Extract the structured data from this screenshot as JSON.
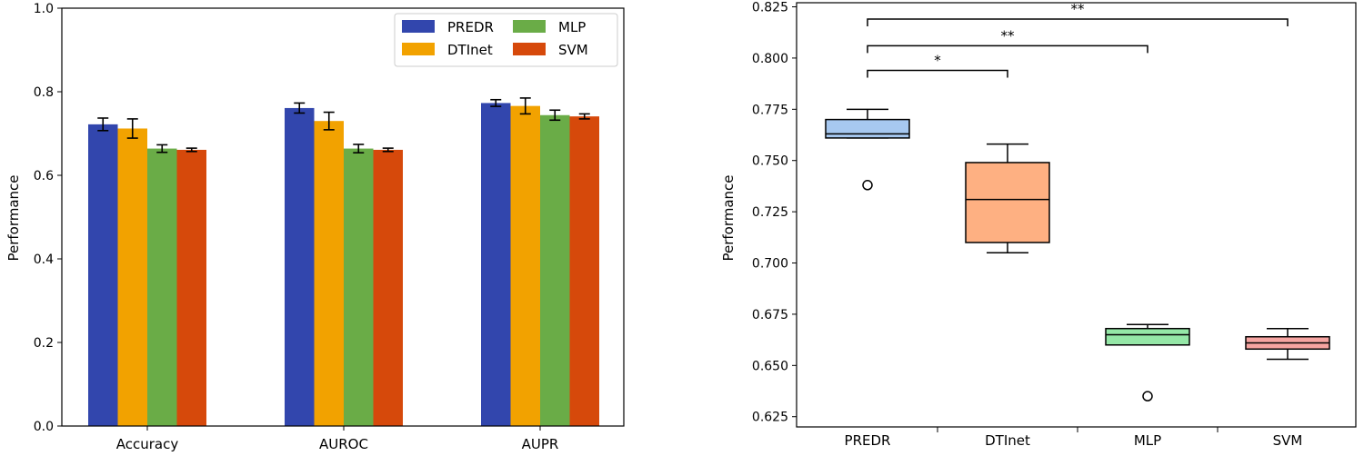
{
  "chart_data": [
    {
      "type": "bar",
      "xlabel": "",
      "ylabel": "Performance",
      "ylim": [
        0,
        1.0
      ],
      "yticks": [
        "0.0",
        "0.2",
        "0.4",
        "0.6",
        "0.8",
        "1.0"
      ],
      "categories": [
        "Accuracy",
        "AUROC",
        "AUPR"
      ],
      "legend_position": "top-right",
      "series": [
        {
          "name": "PREDR",
          "color": "#3246ad",
          "values": [
            0.722,
            0.761,
            0.773
          ],
          "errors": [
            0.015,
            0.012,
            0.008
          ]
        },
        {
          "name": "DTInet",
          "color": "#f2a200",
          "values": [
            0.712,
            0.73,
            0.766
          ],
          "errors": [
            0.023,
            0.021,
            0.019
          ]
        },
        {
          "name": "MLP",
          "color": "#6aac47",
          "values": [
            0.664,
            0.664,
            0.744
          ],
          "errors": [
            0.009,
            0.01,
            0.012
          ]
        },
        {
          "name": "SVM",
          "color": "#d6490b",
          "values": [
            0.661,
            0.661,
            0.741
          ],
          "errors": [
            0.004,
            0.004,
            0.006
          ]
        }
      ]
    },
    {
      "type": "box",
      "xlabel": "",
      "ylabel": "Performance",
      "ylim": [
        0.62,
        0.827
      ],
      "yticks": [
        "0.625",
        "0.650",
        "0.675",
        "0.700",
        "0.725",
        "0.750",
        "0.775",
        "0.800",
        "0.825"
      ],
      "categories": [
        "PREDR",
        "DTInet",
        "MLP",
        "SVM"
      ],
      "boxes": [
        {
          "name": "PREDR",
          "color": "#a7c8f0",
          "whisker_low": 0.761,
          "q1": 0.761,
          "median": 0.763,
          "q3": 0.77,
          "whisker_high": 0.775,
          "outliers": [
            0.738
          ]
        },
        {
          "name": "DTInet",
          "color": "#feb082",
          "whisker_low": 0.705,
          "q1": 0.71,
          "median": 0.731,
          "q3": 0.749,
          "whisker_high": 0.758,
          "outliers": []
        },
        {
          "name": "MLP",
          "color": "#95e7a7",
          "whisker_low": 0.66,
          "q1": 0.66,
          "median": 0.665,
          "q3": 0.668,
          "whisker_high": 0.67,
          "outliers": [
            0.635
          ]
        },
        {
          "name": "SVM",
          "color": "#f6a4a1",
          "whisker_low": 0.653,
          "q1": 0.658,
          "median": 0.661,
          "q3": 0.664,
          "whisker_high": 0.668,
          "outliers": []
        }
      ],
      "significance": [
        {
          "from": "PREDR",
          "to": "DTInet",
          "label": "*"
        },
        {
          "from": "PREDR",
          "to": "MLP",
          "label": "**"
        },
        {
          "from": "PREDR",
          "to": "SVM",
          "label": "**"
        }
      ]
    }
  ]
}
